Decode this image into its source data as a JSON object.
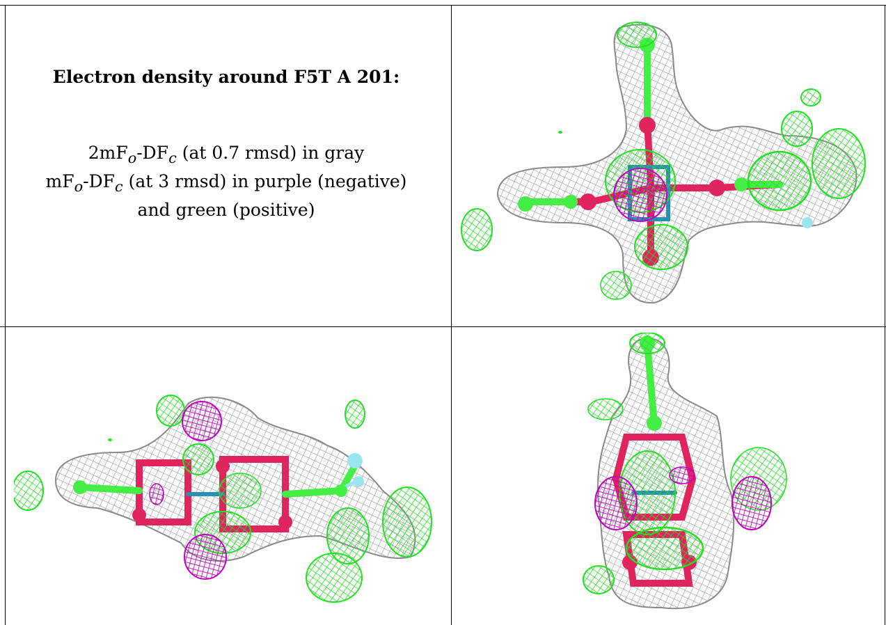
{
  "caption": {
    "title": "Electron density around F5T A 201:",
    "line1": {
      "pre": "2mF",
      "sub1": "o",
      "mid": "-DF",
      "sub2": "c",
      "post": " (at 0.7 rmsd) in gray"
    },
    "line2": {
      "pre": "mF",
      "sub1": "o",
      "mid": "-DF",
      "sub2": "c",
      "post": " (at 3 rmsd) in purple (negative)"
    },
    "line3": "and green (positive)"
  },
  "panels": [
    {
      "name": "view-top-right",
      "image": "electron-density-mesh-view-1"
    },
    {
      "name": "view-bottom-left",
      "image": "electron-density-mesh-view-2"
    },
    {
      "name": "view-bottom-right",
      "image": "electron-density-mesh-view-3"
    }
  ],
  "colors": {
    "mesh_2fofc": "#a6a6a6",
    "mesh_positive": "#33ee33",
    "mesh_negative": "#cc00cc",
    "atom_oxygen": "#e0245e",
    "atom_carbon": "#44ee44",
    "atom_nitrogen": "#2a8fb0",
    "atom_fluorine": "#99e6ee"
  }
}
